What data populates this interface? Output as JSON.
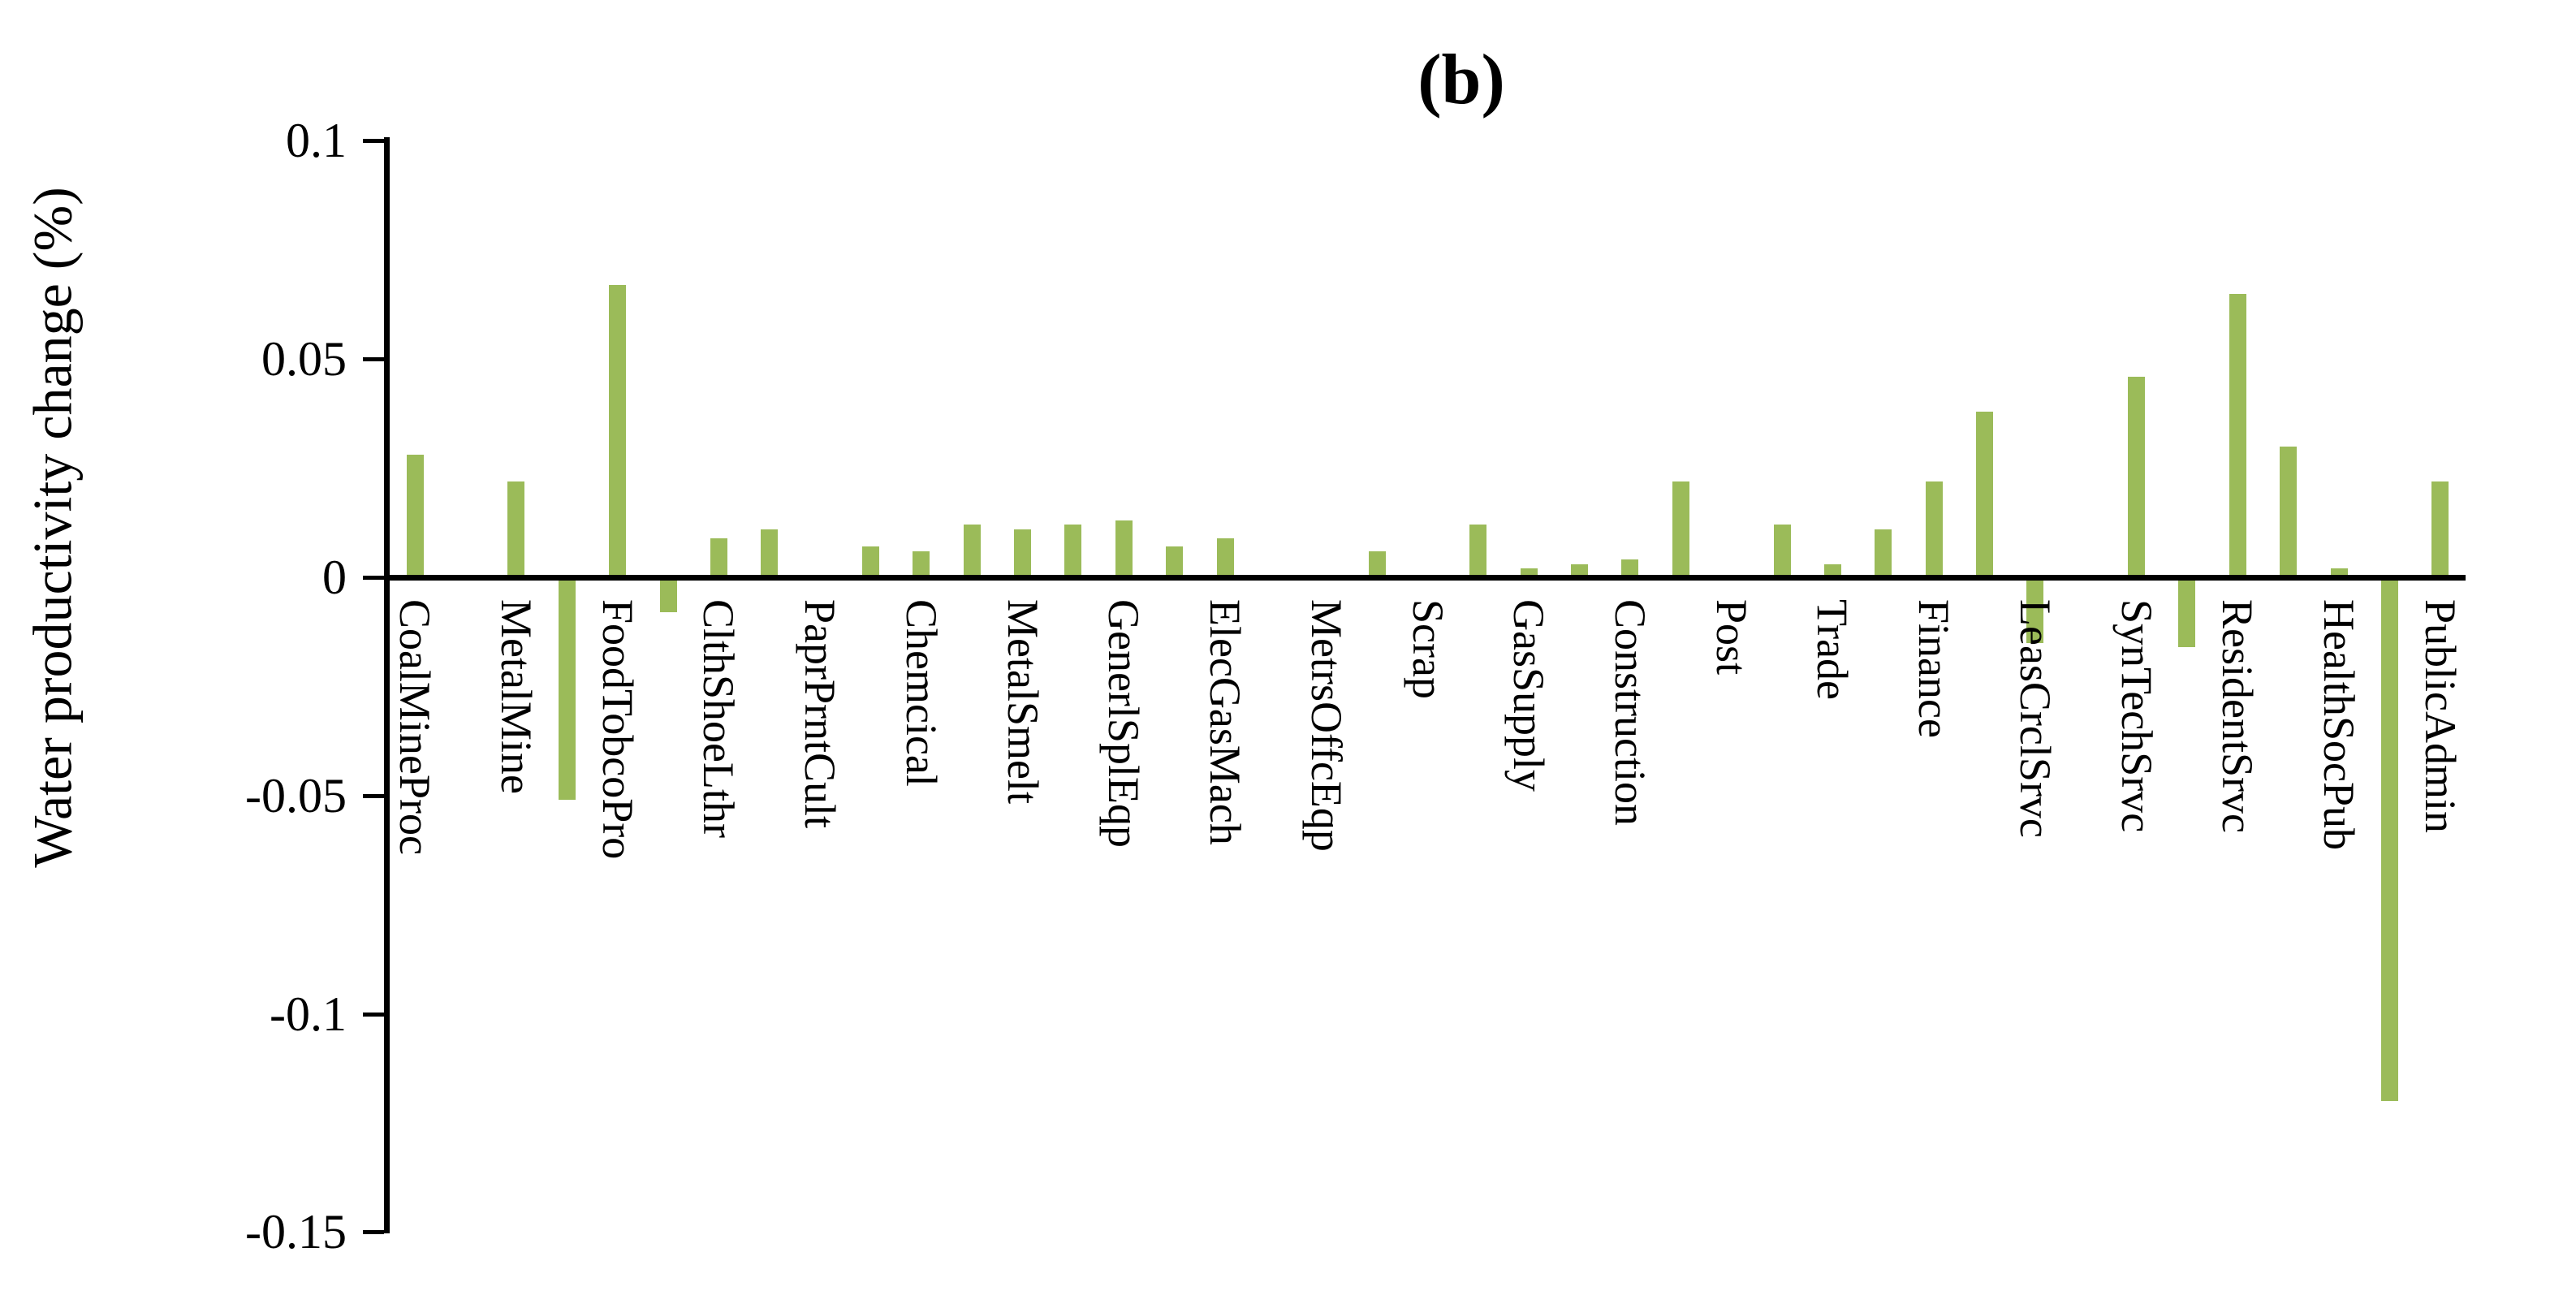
{
  "title": "(b)",
  "chart_data": {
    "type": "bar",
    "title": "(b)",
    "ylabel": "Water productivity change (%)",
    "xlabel": "",
    "ylim": [
      -0.15,
      0.1
    ],
    "y_ticks": [
      0.1,
      0.05,
      0,
      -0.05,
      -0.1,
      -0.15
    ],
    "y_tick_labels": [
      "0.1",
      "0.05",
      "0",
      "-0.05",
      "-0.1",
      "-0.15"
    ],
    "grid": false,
    "legend_position": "none",
    "bar_color": "#9bbb59",
    "axis_color": "#000000",
    "note": "41 bar slots; axis labels appear only under every other (odd) slot",
    "categories": [
      "CoalMineProc",
      "MetalMine",
      "FoodTobcoPro",
      "ClthShoeLthr",
      "PaprPrntCult",
      "Chemcical",
      "MetalSmelt",
      "GenerlSplEqp",
      "ElecGasMach",
      "MetrsOffcEqp",
      "Scrap",
      "GasSupply",
      "Construction",
      "Post",
      "Trade",
      "Finance",
      "LeasCrclSrvc",
      "SynTechSrvc",
      "ResidentSrvc",
      "HealthSocPub",
      "PublicAdmin"
    ],
    "points": [
      {
        "label": "CoalMineProc",
        "value": 0.028
      },
      {
        "label": "",
        "value": 0
      },
      {
        "label": "MetalMine",
        "value": 0.022
      },
      {
        "label": "",
        "value": -0.051
      },
      {
        "label": "FoodTobcoPro",
        "value": 0.067
      },
      {
        "label": "",
        "value": -0.008
      },
      {
        "label": "ClthShoeLthr",
        "value": 0.009
      },
      {
        "label": "",
        "value": 0.011
      },
      {
        "label": "PaprPrntCult",
        "value": 0
      },
      {
        "label": "",
        "value": 0.007
      },
      {
        "label": "Chemcical",
        "value": 0.006
      },
      {
        "label": "",
        "value": 0.012
      },
      {
        "label": "MetalSmelt",
        "value": 0.011
      },
      {
        "label": "",
        "value": 0.012
      },
      {
        "label": "GenerlSplEqp",
        "value": 0.013
      },
      {
        "label": "",
        "value": 0.007
      },
      {
        "label": "ElecGasMach",
        "value": 0.009
      },
      {
        "label": "",
        "value": 0
      },
      {
        "label": "MetrsOffcEqp",
        "value": 0
      },
      {
        "label": "",
        "value": 0.006
      },
      {
        "label": "Scrap",
        "value": 0
      },
      {
        "label": "",
        "value": 0.012
      },
      {
        "label": "GasSupply",
        "value": 0.002
      },
      {
        "label": "",
        "value": 0.003
      },
      {
        "label": "Construction",
        "value": 0.004
      },
      {
        "label": "",
        "value": 0.022
      },
      {
        "label": "Post",
        "value": 0
      },
      {
        "label": "",
        "value": 0.012
      },
      {
        "label": "Trade",
        "value": 0.003
      },
      {
        "label": "",
        "value": 0.011
      },
      {
        "label": "Finance",
        "value": 0.022
      },
      {
        "label": "",
        "value": 0.038
      },
      {
        "label": "LeasCrclSrvc",
        "value": -0.015
      },
      {
        "label": "",
        "value": 0
      },
      {
        "label": "SynTechSrvc",
        "value": 0.046
      },
      {
        "label": "",
        "value": -0.016
      },
      {
        "label": "ResidentSrvc",
        "value": 0.065
      },
      {
        "label": "",
        "value": 0.03
      },
      {
        "label": "HealthSocPub",
        "value": 0.002
      },
      {
        "label": "",
        "value": -0.12
      },
      {
        "label": "PublicAdmin",
        "value": 0.022
      }
    ]
  }
}
